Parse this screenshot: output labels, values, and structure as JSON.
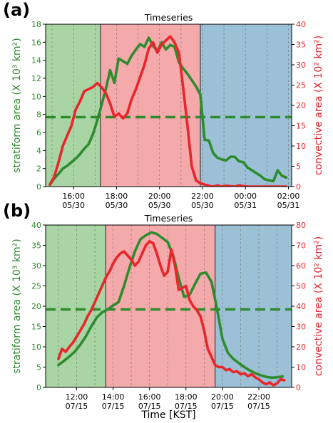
{
  "figure": {
    "xlabel": "Time [KST]"
  },
  "colors": {
    "stratiform": "#2e8b2e",
    "convective": "#e8262b",
    "shade_green": "#a9d4a4",
    "shade_red": "#f4a9ab",
    "shade_blue": "#9cc0d6"
  },
  "chart_data": [
    {
      "type": "line",
      "panel_label": "(a)",
      "title": "Timeseries",
      "ylabel_left": "stratiform area (X 10³ km²)",
      "ylabel_right": "convective area (X 10² km²)",
      "xlim": [
        14.7,
        26.15
      ],
      "ylim_left": [
        0,
        18
      ],
      "ylim_right": [
        0,
        40
      ],
      "yticks_left": [
        0,
        2,
        4,
        6,
        8,
        10,
        12,
        14,
        16,
        18
      ],
      "yticks_right": [
        0,
        5,
        10,
        15,
        20,
        25,
        30,
        35,
        40
      ],
      "xticks": [
        {
          "x": 16,
          "line1": "16:00",
          "line2": "05/30"
        },
        {
          "x": 18,
          "line1": "18:00",
          "line2": "05/30"
        },
        {
          "x": 20,
          "line1": "20:00",
          "line2": "05/30"
        },
        {
          "x": 22,
          "line1": "22:00",
          "line2": "05/30"
        },
        {
          "x": 24,
          "line1": "00:00",
          "line2": "05/31"
        },
        {
          "x": 26,
          "line1": "02:00",
          "line2": "05/31"
        }
      ],
      "grid_minor_x": [
        15,
        17,
        19,
        21,
        23,
        25
      ],
      "phases": [
        {
          "x0": 14.7,
          "x1": 17.25,
          "color": "shade_green"
        },
        {
          "x0": 17.25,
          "x1": 21.9,
          "color": "shade_red"
        },
        {
          "x0": 21.9,
          "x1": 26.15,
          "color": "shade_blue"
        }
      ],
      "hline_left": 7.7,
      "series": [
        {
          "name": "stratiform",
          "axis": "left",
          "x": [
            14.9,
            15.1,
            15.3,
            15.5,
            15.7,
            15.9,
            16.1,
            16.3,
            16.5,
            16.7,
            16.9,
            17.1,
            17.3,
            17.5,
            17.7,
            17.9,
            18.1,
            18.3,
            18.5,
            18.7,
            18.9,
            19.1,
            19.3,
            19.5,
            19.7,
            19.9,
            20.1,
            20.3,
            20.5,
            20.7,
            20.9,
            21.1,
            21.3,
            21.5,
            21.7,
            21.9,
            22.1,
            22.3,
            22.5,
            22.7,
            22.9,
            23.1,
            23.3,
            23.5,
            23.7,
            23.9,
            24.1,
            24.3,
            24.5,
            24.7,
            24.9,
            25.1,
            25.3,
            25.5,
            25.7,
            25.9
          ],
          "y": [
            0.2,
            0.9,
            1.4,
            2.0,
            2.3,
            2.7,
            3.1,
            3.6,
            4.2,
            4.7,
            5.8,
            7.3,
            9.0,
            10.8,
            12.9,
            11.5,
            14.2,
            13.9,
            13.6,
            14.5,
            15.2,
            15.8,
            15.5,
            16.5,
            15.6,
            15.0,
            16.0,
            15.2,
            15.7,
            15.5,
            13.8,
            13.1,
            12.5,
            11.8,
            11.1,
            10.2,
            5.2,
            5.1,
            3.7,
            3.2,
            3.0,
            2.9,
            3.3,
            3.3,
            2.8,
            2.7,
            2.1,
            1.8,
            1.5,
            1.2,
            0.8,
            0.7,
            0.6,
            1.8,
            1.2,
            1.0
          ]
        },
        {
          "name": "convective",
          "axis": "right",
          "x": [
            14.9,
            15.1,
            15.3,
            15.5,
            15.7,
            15.9,
            16.1,
            16.3,
            16.5,
            16.7,
            16.9,
            17.1,
            17.3,
            17.5,
            17.7,
            17.9,
            18.1,
            18.3,
            18.5,
            18.7,
            18.9,
            19.1,
            19.3,
            19.5,
            19.7,
            19.9,
            20.1,
            20.3,
            20.5,
            20.7,
            20.9,
            21.1,
            21.3,
            21.5,
            21.7,
            21.9,
            22.1,
            22.3,
            22.5,
            22.7,
            22.9,
            23.1,
            23.3,
            23.5,
            23.7,
            23.9,
            24.1,
            24.3,
            24.5,
            24.7,
            24.9,
            25.1,
            25.3,
            25.5,
            25.7,
            25.9
          ],
          "y": [
            0.5,
            2.5,
            6.0,
            10.0,
            12.5,
            15.0,
            19.0,
            21.0,
            23.5,
            24.0,
            24.5,
            25.5,
            24.5,
            23.0,
            20.5,
            17.2,
            18.0,
            16.8,
            18.0,
            21.5,
            24.0,
            27.0,
            30.0,
            34.0,
            35.5,
            33.0,
            35.0,
            36.0,
            37.0,
            35.5,
            33.0,
            24.5,
            15.0,
            5.0,
            1.5,
            0.8,
            0.5,
            0.2,
            0.0,
            0.3,
            0.0,
            0.2,
            0.1,
            0.0,
            0.3,
            0.1,
            0.0,
            0.0,
            0.0,
            0.0,
            0.0,
            0.0,
            0.0,
            0.0,
            0.0,
            0.0
          ]
        }
      ]
    },
    {
      "type": "line",
      "panel_label": "(b)",
      "title": "Timeseries",
      "ylabel_left": "stratiform area (X 10³ km²)",
      "ylabel_right": "convective area (X 10² km²)",
      "xlim": [
        10.3,
        23.8
      ],
      "ylim_left": [
        0,
        40
      ],
      "ylim_right": [
        0,
        80
      ],
      "yticks_left": [
        0,
        5,
        10,
        15,
        20,
        25,
        30,
        35,
        40
      ],
      "yticks_right": [
        0,
        10,
        20,
        30,
        40,
        50,
        60,
        70,
        80
      ],
      "xticks": [
        {
          "x": 12,
          "line1": "12:00",
          "line2": "07/15"
        },
        {
          "x": 14,
          "line1": "14:00",
          "line2": "07/15"
        },
        {
          "x": 16,
          "line1": "16:00",
          "line2": "07/15"
        },
        {
          "x": 18,
          "line1": "18:00",
          "line2": "07/15"
        },
        {
          "x": 20,
          "line1": "20:00",
          "line2": "07/15"
        },
        {
          "x": 22,
          "line1": "22:00",
          "line2": "07/15"
        }
      ],
      "grid_minor_x": [
        11,
        13,
        15,
        17,
        19,
        21,
        23
      ],
      "phases": [
        {
          "x0": 10.3,
          "x1": 13.6,
          "color": "shade_green"
        },
        {
          "x0": 13.6,
          "x1": 19.6,
          "color": "shade_red"
        },
        {
          "x0": 19.6,
          "x1": 23.8,
          "color": "shade_blue"
        }
      ],
      "hline_left": 19.2,
      "series": [
        {
          "name": "stratiform",
          "axis": "left",
          "x": [
            11.0,
            11.3,
            11.6,
            11.9,
            12.2,
            12.5,
            12.8,
            13.1,
            13.4,
            13.7,
            14.0,
            14.3,
            14.6,
            14.9,
            15.2,
            15.5,
            15.8,
            16.1,
            16.4,
            16.7,
            17.0,
            17.3,
            17.6,
            17.9,
            18.2,
            18.5,
            18.8,
            19.1,
            19.4,
            19.7,
            20.0,
            20.3,
            20.6,
            20.9,
            21.2,
            21.5,
            21.8,
            22.1,
            22.4,
            22.7,
            23.0,
            23.3
          ],
          "y": [
            5.5,
            6.5,
            7.6,
            8.8,
            10.5,
            12.5,
            15.0,
            17.2,
            18.5,
            19.2,
            20.2,
            21.0,
            25.0,
            29.5,
            33.5,
            36.5,
            37.5,
            38.2,
            37.8,
            36.8,
            35.8,
            32.5,
            27.0,
            22.3,
            22.8,
            25.5,
            28.0,
            28.3,
            26.0,
            19.5,
            12.0,
            8.5,
            7.0,
            6.0,
            5.0,
            4.2,
            3.5,
            3.0,
            2.6,
            2.4,
            2.5,
            2.7
          ]
        },
        {
          "name": "convective",
          "axis": "right",
          "x": [
            11.0,
            11.2,
            11.4,
            11.6,
            11.8,
            12.0,
            12.2,
            12.4,
            12.6,
            12.8,
            13.0,
            13.2,
            13.4,
            13.6,
            13.8,
            14.0,
            14.2,
            14.4,
            14.6,
            14.8,
            15.0,
            15.2,
            15.4,
            15.6,
            15.8,
            16.0,
            16.2,
            16.4,
            16.6,
            16.8,
            17.0,
            17.2,
            17.4,
            17.6,
            17.8,
            18.0,
            18.2,
            18.4,
            18.6,
            18.8,
            19.0,
            19.2,
            19.4,
            19.6,
            19.8,
            20.0,
            20.2,
            20.4,
            20.6,
            20.8,
            21.0,
            21.2,
            21.4,
            21.6,
            21.8,
            22.0,
            22.2,
            22.4,
            22.6,
            22.8,
            23.0,
            23.2,
            23.4
          ],
          "y": [
            14.0,
            19.0,
            17.5,
            20.0,
            22.0,
            25.0,
            28.0,
            31.0,
            35.0,
            38.0,
            42.0,
            46.0,
            50.0,
            54.0,
            57.0,
            61.0,
            64.0,
            66.0,
            67.0,
            65.0,
            63.0,
            60.0,
            62.0,
            66.0,
            70.0,
            72.0,
            71.0,
            66.0,
            60.0,
            55.0,
            57.0,
            68.0,
            60.0,
            48.0,
            49.0,
            50.0,
            43.0,
            40.0,
            38.0,
            35.0,
            28.0,
            19.0,
            15.0,
            11.0,
            10.0,
            10.0,
            8.5,
            9.0,
            7.5,
            8.0,
            6.5,
            7.0,
            5.5,
            6.5,
            5.0,
            4.0,
            2.5,
            1.5,
            2.5,
            1.0,
            2.0,
            4.0,
            3.5
          ]
        }
      ]
    }
  ]
}
